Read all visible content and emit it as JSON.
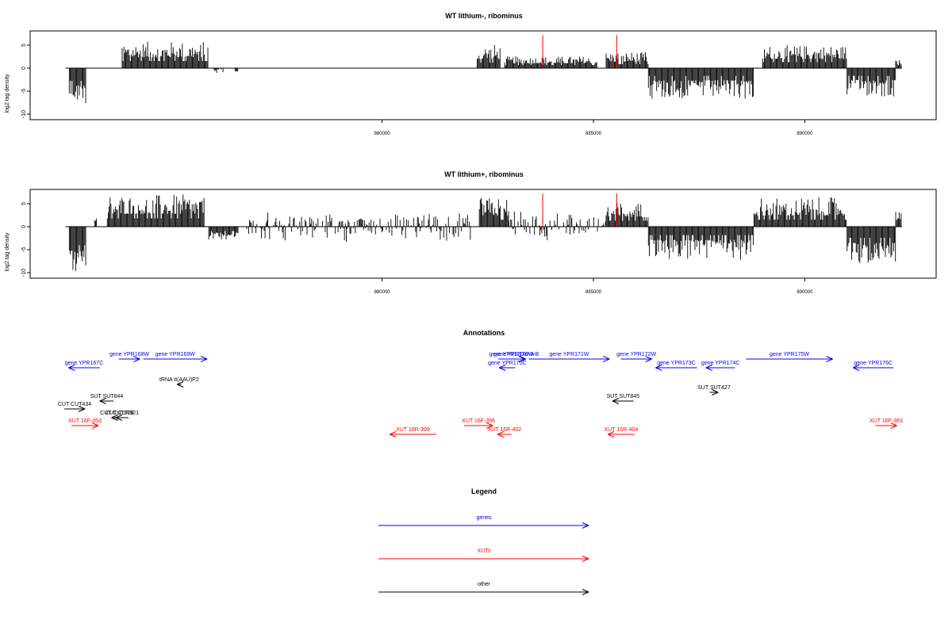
{
  "chart_data": [
    {
      "type": "bar",
      "title": "WT lithium-, ribominus",
      "ylabel": "log2 tag density",
      "xlabel": "",
      "x_range": [
        872500,
        892300
      ],
      "ylim": [
        -11,
        8
      ],
      "y_ticks": [
        -10,
        -5,
        0,
        5
      ],
      "x_ticks": [
        880000,
        885000,
        890000
      ],
      "x_tick_labels": [
        "880000",
        "885000",
        "890000"
      ],
      "grid": false,
      "legend": "none",
      "bar_color": "#000000",
      "marker_color": "#ff0000",
      "markers_x": [
        883800,
        885550
      ],
      "markers_height": 7.2,
      "regions": [
        {
          "x": [
            872600,
            873000
          ],
          "y": [
            -1.5,
            -7.8
          ],
          "profile": "bottom"
        },
        {
          "x": [
            873850,
            875900
          ],
          "y": [
            0.5,
            5.8
          ],
          "profile": "top"
        },
        {
          "x": [
            876000,
            876250
          ],
          "y": [
            0.3,
            -1.2
          ],
          "profile": "top"
        },
        {
          "x": [
            876500,
            876600
          ],
          "y": [
            0.2,
            -1.0
          ],
          "profile": "top"
        },
        {
          "x": [
            882250,
            882800
          ],
          "y": [
            0.2,
            5.2
          ],
          "profile": "top"
        },
        {
          "x": [
            882900,
            885100
          ],
          "y": [
            0.2,
            2.6
          ],
          "profile": "top"
        },
        {
          "x": [
            885300,
            886300
          ],
          "y": [
            0.2,
            3.6
          ],
          "profile": "top"
        },
        {
          "x": [
            886300,
            888800
          ],
          "y": [
            -0.4,
            -6.8
          ],
          "profile": "bottom"
        },
        {
          "x": [
            889000,
            891000
          ],
          "y": [
            0.4,
            5.0
          ],
          "profile": "top"
        },
        {
          "x": [
            891000,
            892150
          ],
          "y": [
            -0.5,
            -6.4
          ],
          "profile": "bottom"
        },
        {
          "x": [
            892150,
            892300
          ],
          "y": [
            0.3,
            1.8
          ],
          "profile": "top"
        }
      ]
    },
    {
      "type": "bar",
      "title": "WT lithium+, ribominus",
      "ylabel": "log2 tag density",
      "xlabel": "",
      "x_range": [
        872500,
        892300
      ],
      "ylim": [
        -11,
        8
      ],
      "y_ticks": [
        -10,
        -5,
        0,
        5
      ],
      "x_ticks": [
        880000,
        885000,
        890000
      ],
      "x_tick_labels": [
        "880000",
        "885000",
        "890000"
      ],
      "grid": false,
      "legend": "none",
      "bar_color": "#000000",
      "marker_color": "#ff0000",
      "markers_x": [
        883800,
        885550
      ],
      "markers_height": 7.2,
      "regions": [
        {
          "x": [
            872600,
            873000
          ],
          "y": [
            -2.5,
            -10.2
          ],
          "profile": "bottom"
        },
        {
          "x": [
            873200,
            873250
          ],
          "y": [
            0.5,
            2.0
          ],
          "profile": "top"
        },
        {
          "x": [
            873500,
            875800
          ],
          "y": [
            0.5,
            7.0
          ],
          "profile": "top"
        },
        {
          "x": [
            875900,
            876600
          ],
          "y": [
            -0.5,
            -2.8
          ],
          "profile": "bottom"
        },
        {
          "x": [
            876800,
            882100
          ],
          "y": [
            0.2,
            -3.6
          ],
          "profile": "mixed"
        },
        {
          "x": [
            882300,
            883000
          ],
          "y": [
            0.3,
            6.4
          ],
          "profile": "top"
        },
        {
          "x": [
            883000,
            885300
          ],
          "y": [
            0.2,
            3.6
          ],
          "profile": "mixed"
        },
        {
          "x": [
            885300,
            886300
          ],
          "y": [
            0.3,
            5.3
          ],
          "profile": "top"
        },
        {
          "x": [
            886300,
            888800
          ],
          "y": [
            -0.5,
            -7.2
          ],
          "profile": "bottom"
        },
        {
          "x": [
            888800,
            891000
          ],
          "y": [
            0.3,
            6.4
          ],
          "profile": "top"
        },
        {
          "x": [
            891000,
            892150
          ],
          "y": [
            -1.0,
            -8.2
          ],
          "profile": "bottom"
        },
        {
          "x": [
            892150,
            892300
          ],
          "y": [
            0.3,
            3.2
          ],
          "profile": "top"
        }
      ]
    }
  ],
  "annotations": {
    "title": "Annotations",
    "x_range": [
      872500,
      892300
    ],
    "items": [
      {
        "label": "gene YPR167C",
        "color": "#0000ff",
        "x1": 873320,
        "x2": 872580,
        "row": 3,
        "dir": "left"
      },
      {
        "label": "gene YPR168W",
        "color": "#0000ff",
        "x1": 873770,
        "x2": 874270,
        "row": 1,
        "dir": "right"
      },
      {
        "label": "gene YPR169W",
        "color": "#0000ff",
        "x1": 874350,
        "x2": 875860,
        "row": 1,
        "dir": "right"
      },
      {
        "label": "tRNA tI(AAU)P2",
        "color": "#000000",
        "x1": 875250,
        "x2": 875150,
        "row": 5,
        "dir": "left"
      },
      {
        "label": "gene YPR170C",
        "color": "#0000ff",
        "x1": 883150,
        "x2": 882770,
        "row": 3,
        "dir": "left"
      },
      {
        "label": "gene YPR170W-A",
        "color": "#0000ff",
        "x1": 882750,
        "x2": 883380,
        "row": 1,
        "dir": "right"
      },
      {
        "label": "gene YPR170W-B",
        "color": "#0000ff",
        "x1": 882950,
        "x2": 883400,
        "row": 1,
        "dir": "right"
      },
      {
        "label": "gene YPR171W",
        "color": "#0000ff",
        "x1": 883470,
        "x2": 885380,
        "row": 1,
        "dir": "right"
      },
      {
        "label": "gene YPR172W",
        "color": "#0000ff",
        "x1": 885650,
        "x2": 886380,
        "row": 1,
        "dir": "right"
      },
      {
        "label": "gene YPR173C",
        "color": "#0000ff",
        "x1": 887450,
        "x2": 886470,
        "row": 3,
        "dir": "left"
      },
      {
        "label": "gene YPR174C",
        "color": "#0000ff",
        "x1": 888350,
        "x2": 887660,
        "row": 3,
        "dir": "left"
      },
      {
        "label": "gene YPR175W",
        "color": "#0000ff",
        "x1": 888610,
        "x2": 890660,
        "row": 1,
        "dir": "right"
      },
      {
        "label": "gene YPR176C",
        "color": "#0000ff",
        "x1": 892100,
        "x2": 891140,
        "row": 3,
        "dir": "left"
      },
      {
        "label": "SUT SUT844",
        "color": "#000000",
        "x1": 873650,
        "x2": 873320,
        "row": 7,
        "dir": "left"
      },
      {
        "label": "SUT SUT845",
        "color": "#000000",
        "x1": 885950,
        "x2": 885450,
        "row": 7,
        "dir": "left"
      },
      {
        "label": "SUT SUT427",
        "color": "#000000",
        "x1": 887750,
        "x2": 887950,
        "row": 6,
        "dir": "right"
      },
      {
        "label": "CUT CUT434",
        "color": "#000000",
        "x1": 872480,
        "x2": 872970,
        "row": 8,
        "dir": "right"
      },
      {
        "label": "CUT CUT920",
        "color": "#000000",
        "x1": 873850,
        "x2": 873600,
        "row": 9,
        "dir": "left"
      },
      {
        "label": "CUT CUT921",
        "color": "#000000",
        "x1": 874000,
        "x2": 873700,
        "row": 9,
        "dir": "left"
      },
      {
        "label": "XUT 16F-353",
        "color": "#ff0000",
        "x1": 872650,
        "x2": 873290,
        "row": 10,
        "dir": "right"
      },
      {
        "label": "XUT 16R-399",
        "color": "#ff0000",
        "x1": 881280,
        "x2": 880180,
        "row": 11,
        "dir": "left"
      },
      {
        "label": "XUT 16F-356",
        "color": "#ff0000",
        "x1": 881940,
        "x2": 882620,
        "row": 10,
        "dir": "right"
      },
      {
        "label": "XUT 16R-402",
        "color": "#ff0000",
        "x1": 883060,
        "x2": 882730,
        "row": 11,
        "dir": "left"
      },
      {
        "label": "XUT 16R-404",
        "color": "#ff0000",
        "x1": 885970,
        "x2": 885340,
        "row": 11,
        "dir": "left"
      },
      {
        "label": "XUT 16F-363",
        "color": "#ff0000",
        "x1": 891670,
        "x2": 892180,
        "row": 10,
        "dir": "right"
      }
    ]
  },
  "legend": {
    "title": "Legend",
    "items": [
      {
        "label": "genes",
        "color": "#0000ff"
      },
      {
        "label": "XUTs",
        "color": "#ff0000"
      },
      {
        "label": "other",
        "color": "#000000"
      }
    ]
  }
}
